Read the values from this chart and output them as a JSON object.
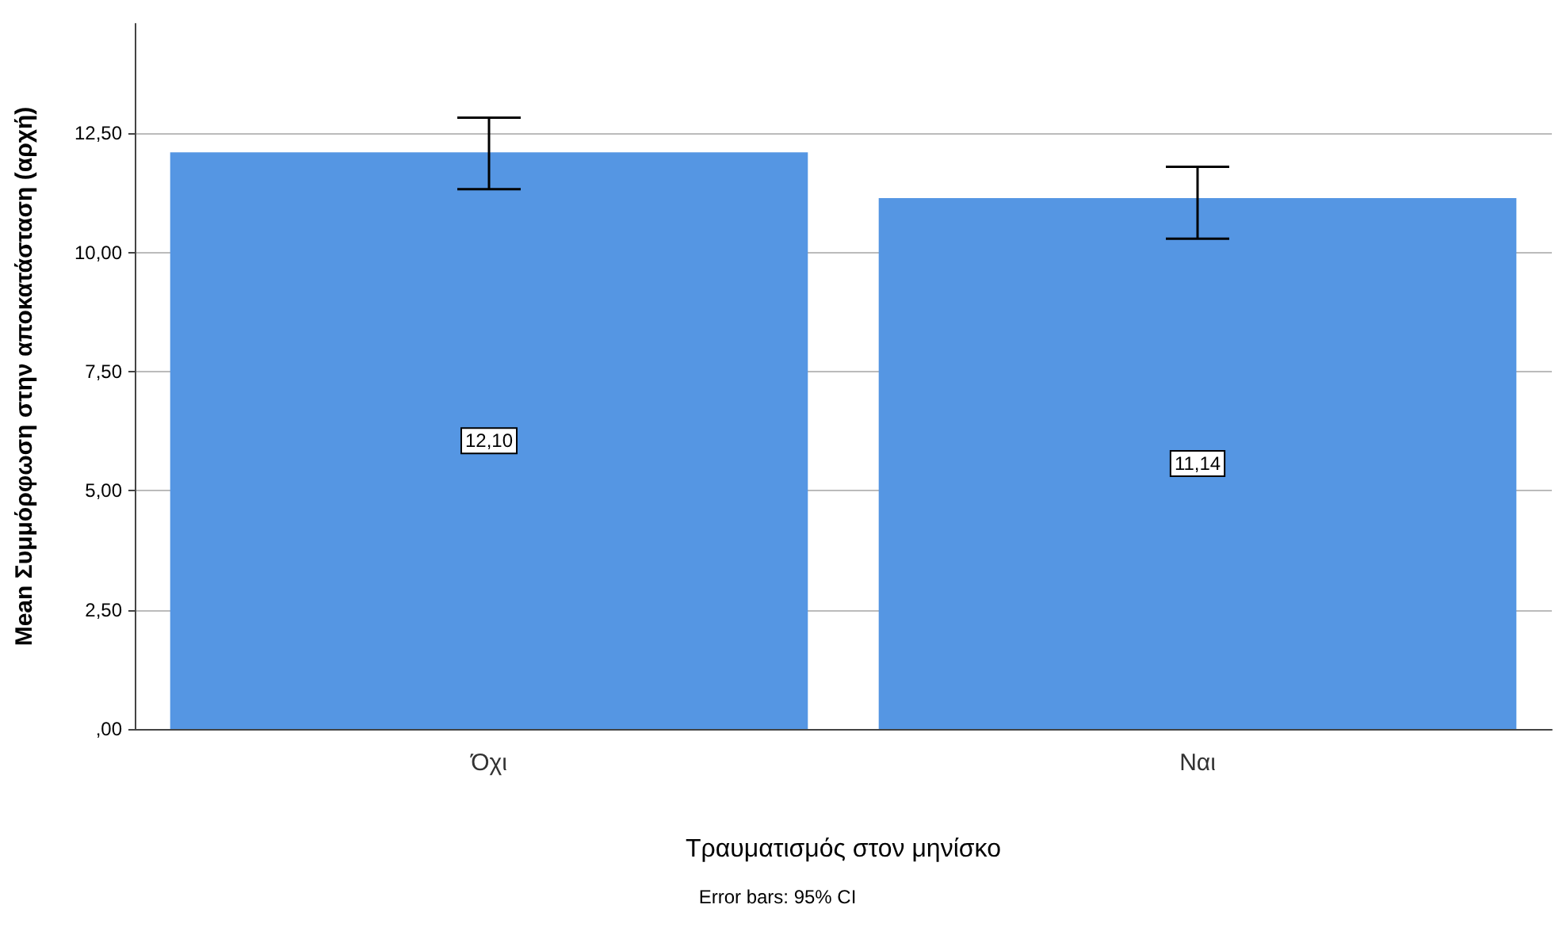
{
  "chart_data": {
    "type": "bar",
    "xlabel": "Τραυματισμός στον μηνίσκο",
    "ylabel": "Mean Συμμόρφωση στην αποκατάσταση (αρχή)",
    "categories": [
      "Όχι",
      "Ναι"
    ],
    "series": [
      {
        "color": "#5596e3",
        "values": [
          12.1,
          11.14
        ],
        "value_labels": [
          "12,10",
          "11,14"
        ],
        "errors": [
          [
            11.33,
            12.83
          ],
          [
            10.29,
            11.8
          ]
        ]
      }
    ],
    "ylim": [
      0,
      14.8
    ],
    "yticks": [
      {
        "value": 0,
        "label": ",00"
      },
      {
        "value": 2.5,
        "label": "2,50"
      },
      {
        "value": 5,
        "label": "5,00"
      },
      {
        "value": 7.5,
        "label": "7,50"
      },
      {
        "value": 10,
        "label": "10,00"
      },
      {
        "value": 12.5,
        "label": "12,50"
      }
    ],
    "grid": "y",
    "annotations": [
      "Error bars: 95% CI"
    ]
  }
}
